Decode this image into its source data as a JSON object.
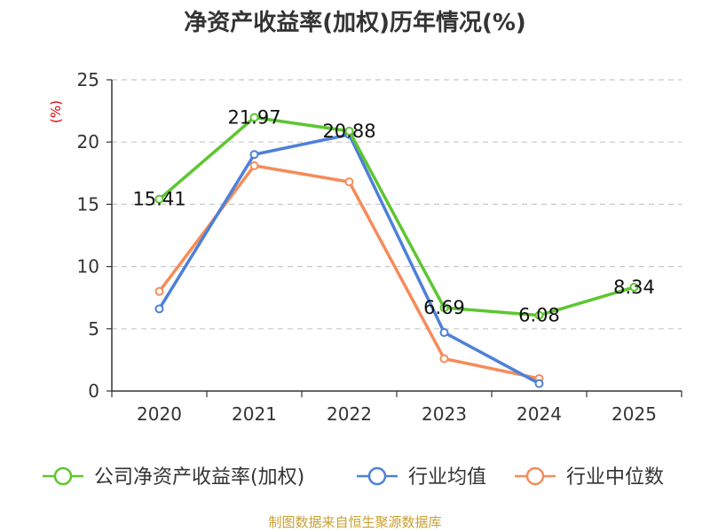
{
  "chart_data": {
    "type": "line",
    "title": "净资产收益率(加权)历年情况(%)",
    "ylabel": "(%)",
    "xlabel": "",
    "categories": [
      "2020",
      "2021",
      "2022",
      "2023",
      "2024",
      "2025"
    ],
    "ylim": [
      0,
      25
    ],
    "yticks": [
      0,
      5,
      10,
      15,
      20,
      25
    ],
    "grid": "horizontal-dashed",
    "legend": "bottom",
    "series": [
      {
        "name": "公司净资产收益率(加权)",
        "color": "#5dc630",
        "values": [
          15.41,
          21.97,
          20.88,
          6.69,
          6.08,
          8.34
        ],
        "labels": [
          "15.41",
          "21.97",
          "20.88",
          "6.69",
          "6.08",
          "8.34"
        ]
      },
      {
        "name": "行业均值",
        "color": "#4e80d8",
        "values": [
          6.6,
          19.0,
          20.6,
          4.7,
          0.6,
          null
        ]
      },
      {
        "name": "行业中位数",
        "color": "#f58c5a",
        "values": [
          8.0,
          18.1,
          16.8,
          2.6,
          1.0,
          null
        ]
      }
    ]
  },
  "source": "制图数据来自恒生聚源数据库"
}
